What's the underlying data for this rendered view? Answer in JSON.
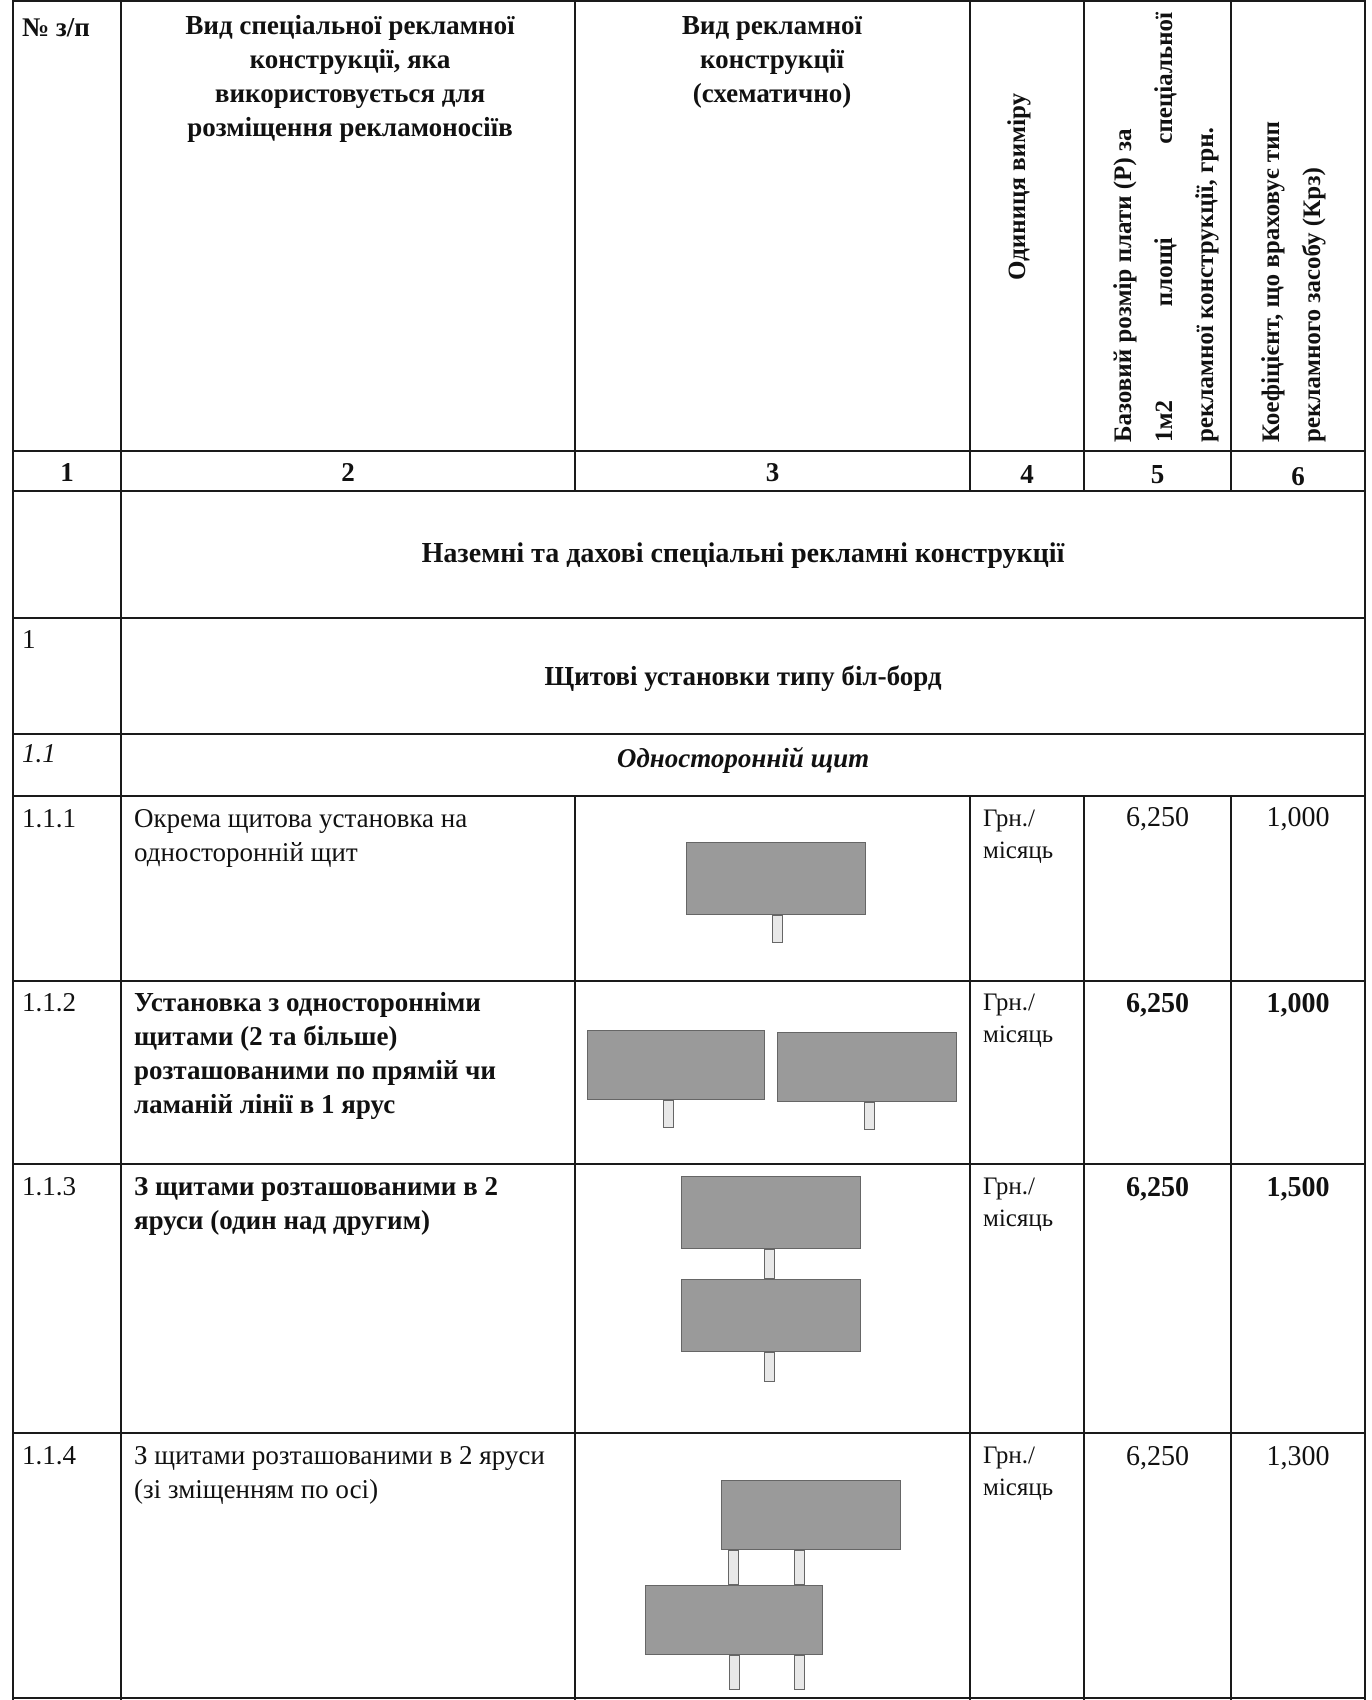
{
  "header": {
    "col1": "№ з/п",
    "col2": "Вид спеціальної рекламної конструкції, яка використовується для розміщення рекламоносіїв",
    "col3": "Вид рекламної конструкції (схематично)",
    "col4": "Одиниця виміру",
    "col5_line1": "Базовий розмір плати (Р) за",
    "col5_line2": "1м2 площі спеціальної",
    "col5_line3": "рекламної конструкції, грн.",
    "col6_line1": "Коефіцієнт, що враховує тип",
    "col6_line2": "рекламного засобу (Крз)"
  },
  "col_numbers": [
    "1",
    "2",
    "3",
    "4",
    "5",
    "6"
  ],
  "section_title": "Наземні та дахові спеціальні рекламні конструкції",
  "group": {
    "num": "1",
    "title": "Щитові установки типу біл-борд"
  },
  "subgroup": {
    "num": "1.1",
    "title": "Односторонній щит"
  },
  "rows": [
    {
      "num": "1.1.1",
      "desc": "Окрема щитова установка на односторонній щит",
      "unit_1": "Грн./",
      "unit_2": "місяць",
      "price": "6,250",
      "coef": "1,000"
    },
    {
      "num": "1.1.2",
      "desc": "Установка з односторонніми щитами (2 та більше) розташованими по прямій чи ламаній лінії в 1 ярус",
      "unit_1": "Грн./",
      "unit_2": "місяць",
      "price": "6,250",
      "coef": "1,000"
    },
    {
      "num": "1.1.3",
      "desc": "З щитами розташованими в 2 яруси (один над другим)",
      "unit_1": "Грн./",
      "unit_2": "місяць",
      "price": "6,250",
      "coef": "1,500"
    },
    {
      "num": "1.1.4",
      "desc": "З щитами розташованими в 2 яруси (зі зміщенням по осі)",
      "unit_1": "Грн./",
      "unit_2": "місяць",
      "price": "6,250",
      "coef": "1,300"
    }
  ]
}
